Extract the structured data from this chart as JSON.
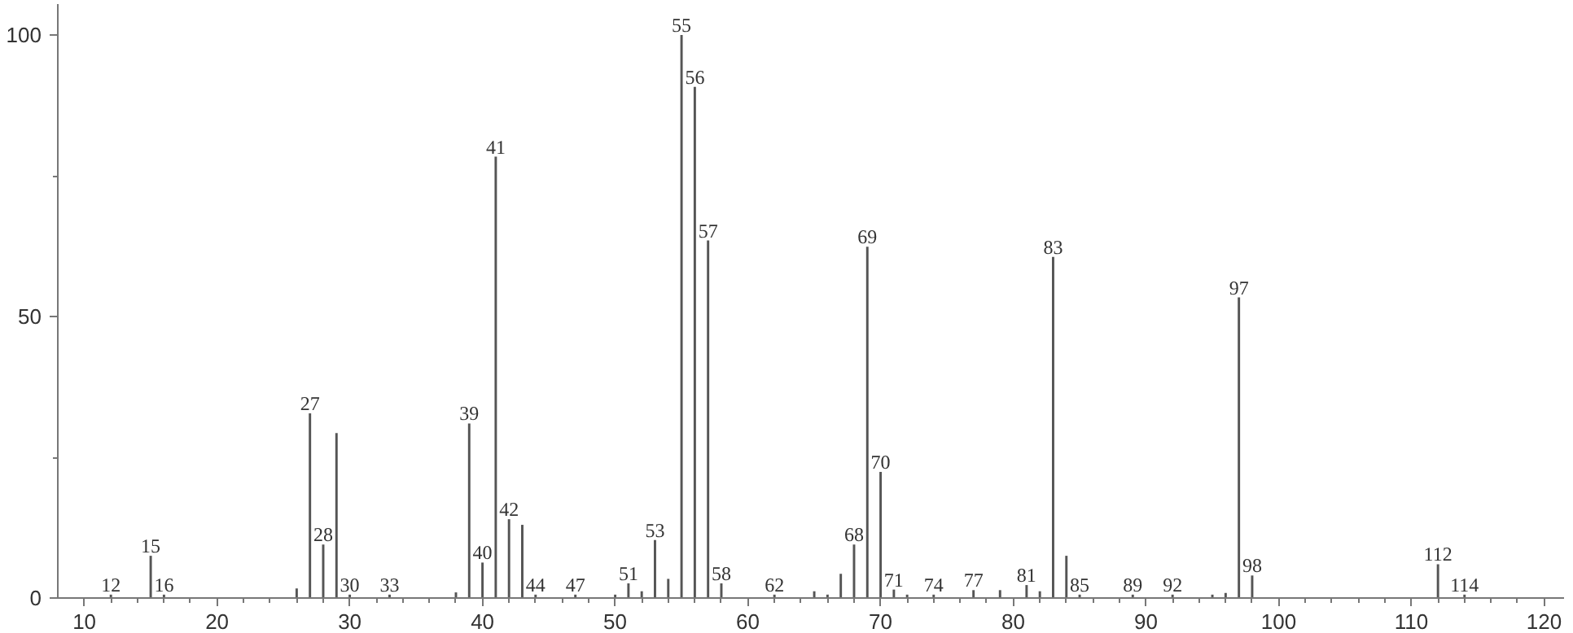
{
  "chart_data": {
    "type": "bar",
    "color": "#555555",
    "x": [
      12,
      15,
      16,
      26,
      27,
      28,
      29,
      30,
      33,
      38,
      39,
      40,
      41,
      42,
      43,
      44,
      47,
      50,
      51,
      52,
      53,
      54,
      55,
      56,
      57,
      58,
      62,
      65,
      66,
      67,
      68,
      69,
      70,
      71,
      72,
      74,
      77,
      79,
      81,
      82,
      83,
      84,
      85,
      89,
      92,
      95,
      96,
      97,
      98,
      112,
      114
    ],
    "values": [
      0.6,
      7.5,
      0.6,
      1.7,
      32.8,
      9.5,
      29.3,
      0.6,
      0.6,
      1,
      31,
      6.3,
      78.4,
      14,
      13,
      0.6,
      0.6,
      0.6,
      2.6,
      1.2,
      10.3,
      3.4,
      100,
      90.8,
      63.5,
      2.6,
      0.6,
      1.2,
      0.6,
      4.3,
      9.5,
      62.4,
      22.4,
      1.5,
      0.6,
      0.6,
      1.4,
      1.4,
      2.3,
      1.2,
      60.6,
      7.5,
      0.6,
      0.6,
      0.6,
      0.6,
      0.9,
      53.4,
      4,
      6,
      0.6
    ],
    "annotations": [
      {
        "text": "12",
        "x": 12,
        "y": 0.6
      },
      {
        "text": "15",
        "x": 15,
        "y": 7.5
      },
      {
        "text": "16",
        "x": 16,
        "y": 0.6
      },
      {
        "text": "27",
        "x": 27,
        "y": 32.8
      },
      {
        "text": "28",
        "x": 28,
        "y": 9.5
      },
      {
        "text": "30",
        "x": 30,
        "y": 0.6
      },
      {
        "text": "33",
        "x": 33,
        "y": 0.6
      },
      {
        "text": "39",
        "x": 39,
        "y": 31
      },
      {
        "text": "40",
        "x": 40,
        "y": 6.3
      },
      {
        "text": "41",
        "x": 41,
        "y": 78.4
      },
      {
        "text": "42",
        "x": 42,
        "y": 14
      },
      {
        "text": "44",
        "x": 44,
        "y": 0.6
      },
      {
        "text": "47",
        "x": 47,
        "y": 0.6
      },
      {
        "text": "51",
        "x": 51,
        "y": 2.6
      },
      {
        "text": "53",
        "x": 53,
        "y": 10.3
      },
      {
        "text": "55",
        "x": 55,
        "y": 100
      },
      {
        "text": "56",
        "x": 56,
        "y": 90.8
      },
      {
        "text": "57",
        "x": 57,
        "y": 63.5
      },
      {
        "text": "58",
        "x": 58,
        "y": 2.6
      },
      {
        "text": "62",
        "x": 62,
        "y": 0.6
      },
      {
        "text": "68",
        "x": 68,
        "y": 9.5
      },
      {
        "text": "69",
        "x": 69,
        "y": 62.4
      },
      {
        "text": "70",
        "x": 70,
        "y": 22.4
      },
      {
        "text": "71",
        "x": 71,
        "y": 1.5
      },
      {
        "text": "74",
        "x": 74,
        "y": 0.6
      },
      {
        "text": "77",
        "x": 77,
        "y": 1.4
      },
      {
        "text": "81",
        "x": 81,
        "y": 2.3
      },
      {
        "text": "83",
        "x": 83,
        "y": 60.6
      },
      {
        "text": "85",
        "x": 85,
        "y": 0.6
      },
      {
        "text": "89",
        "x": 89,
        "y": 0.6
      },
      {
        "text": "92",
        "x": 92,
        "y": 0.6
      },
      {
        "text": "97",
        "x": 97,
        "y": 53.4
      },
      {
        "text": "98",
        "x": 98,
        "y": 4
      },
      {
        "text": "112",
        "x": 112,
        "y": 6
      },
      {
        "text": "114",
        "x": 114,
        "y": 0.6
      }
    ],
    "xlim": [
      8,
      121.5
    ],
    "ylim": [
      0,
      105.5
    ],
    "xticks": [
      10,
      {
        "value": 12,
        "label": null
      },
      {
        "value": 14,
        "label": null
      },
      {
        "value": 16,
        "label": null
      },
      {
        "value": 18,
        "label": null
      },
      20,
      {
        "value": 22,
        "label": null
      },
      {
        "value": 24,
        "label": null
      },
      {
        "value": 26,
        "label": null
      },
      {
        "value": 28,
        "label": null
      },
      30,
      {
        "value": 32,
        "label": null
      },
      {
        "value": 34,
        "label": null
      },
      {
        "value": 36,
        "label": null
      },
      {
        "value": 38,
        "label": null
      },
      40,
      {
        "value": 42,
        "label": null
      },
      {
        "value": 44,
        "label": null
      },
      {
        "value": 46,
        "label": null
      },
      {
        "value": 48,
        "label": null
      },
      50,
      {
        "value": 52,
        "label": null
      },
      {
        "value": 54,
        "label": null
      },
      {
        "value": 56,
        "label": null
      },
      {
        "value": 58,
        "label": null
      },
      60,
      {
        "value": 62,
        "label": null
      },
      {
        "value": 64,
        "label": null
      },
      {
        "value": 66,
        "label": null
      },
      {
        "value": 68,
        "label": null
      },
      70,
      {
        "value": 72,
        "label": null
      },
      {
        "value": 74,
        "label": null
      },
      {
        "value": 76,
        "label": null
      },
      {
        "value": 78,
        "label": null
      },
      80,
      {
        "value": 82,
        "label": null
      },
      {
        "value": 84,
        "label": null
      },
      {
        "value": 86,
        "label": null
      },
      {
        "value": 88,
        "label": null
      },
      90,
      {
        "value": 92,
        "label": null
      },
      {
        "value": 94,
        "label": null
      },
      {
        "value": 96,
        "label": null
      },
      {
        "value": 98,
        "label": null
      },
      100,
      {
        "value": 102,
        "label": null
      },
      {
        "value": 104,
        "label": null
      },
      {
        "value": 106,
        "label": null
      },
      {
        "value": 108,
        "label": null
      },
      110,
      {
        "value": 112,
        "label": null
      },
      {
        "value": 114,
        "label": null
      },
      {
        "value": 116,
        "label": null
      },
      {
        "value": 118,
        "label": null
      },
      120
    ],
    "yticks": [
      0,
      {
        "value": 25,
        "label": null
      },
      50,
      {
        "value": 75,
        "label": null
      },
      100
    ],
    "grid": false
  }
}
